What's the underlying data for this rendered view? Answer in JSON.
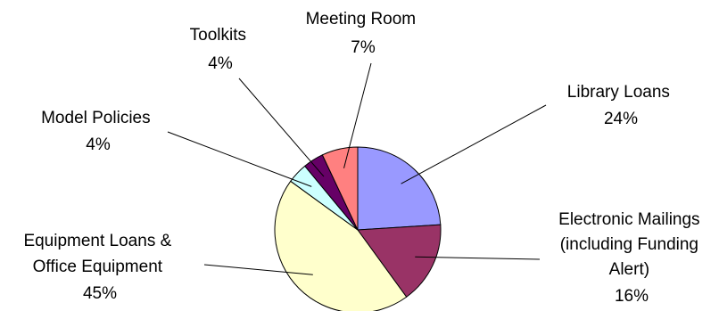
{
  "chart_data": {
    "type": "pie",
    "title": "",
    "legend": "none",
    "slices": [
      {
        "label_lines": [
          "Library Loans"
        ],
        "pct_label": "24%",
        "value": 24,
        "color": "#9999ff"
      },
      {
        "label_lines": [
          "Electronic Mailings",
          "(including Funding",
          "Alert)"
        ],
        "pct_label": "16%",
        "value": 16,
        "color": "#993366"
      },
      {
        "label_lines": [
          "Equipment Loans &",
          "Office Equipment"
        ],
        "pct_label": "45%",
        "value": 45,
        "color": "#ffffcc"
      },
      {
        "label_lines": [
          "Model Policies"
        ],
        "pct_label": "4%",
        "value": 4,
        "color": "#ccffff"
      },
      {
        "label_lines": [
          "Toolkits"
        ],
        "pct_label": "4%",
        "value": 4,
        "color": "#660066"
      },
      {
        "label_lines": [
          "Meeting Room"
        ],
        "pct_label": "7%",
        "value": 7,
        "color": "#ff8080"
      }
    ]
  }
}
